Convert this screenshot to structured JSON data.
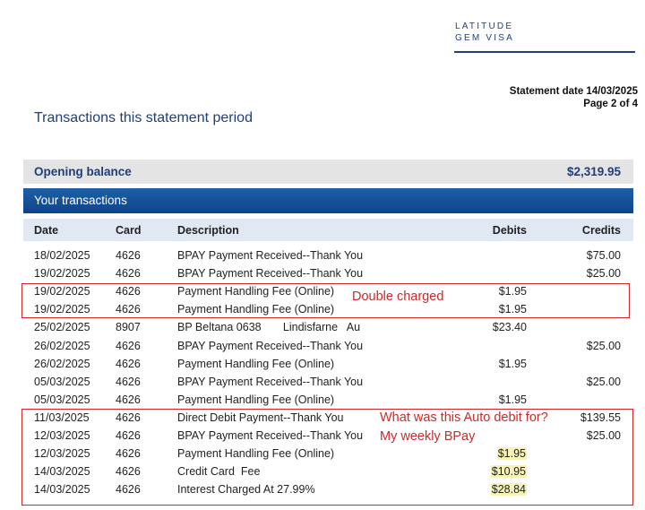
{
  "brand": {
    "line1": "LATITUDE",
    "line2": "GEM VISA"
  },
  "statement": {
    "date_label": "Statement date 14/03/2025",
    "page_label": "Page 2 of 4"
  },
  "page_title": "Transactions this statement period",
  "opening": {
    "label": "Opening balance",
    "value": "$2,319.95"
  },
  "your_transactions": "Your transactions",
  "columns": {
    "date": "Date",
    "card": "Card",
    "description": "Description",
    "debits": "Debits",
    "credits": "Credits"
  },
  "rows": [
    {
      "date": "18/02/2025",
      "card": "4626",
      "description": "BPAY Payment Received--Thank You",
      "debit": "",
      "credit": "$75.00"
    },
    {
      "date": "19/02/2025",
      "card": "4626",
      "description": "BPAY Payment Received--Thank You",
      "debit": "",
      "credit": "$25.00"
    },
    {
      "date": "19/02/2025",
      "card": "4626",
      "description": "Payment Handling Fee (Online)",
      "debit": "$1.95",
      "credit": ""
    },
    {
      "date": "19/02/2025",
      "card": "4626",
      "description": "Payment Handling Fee (Online)",
      "debit": "$1.95",
      "credit": ""
    },
    {
      "date": "25/02/2025",
      "card": "8907",
      "description": "BP Beltana 0638       Lindisfarne   Au",
      "debit": "$23.40",
      "credit": ""
    },
    {
      "date": "26/02/2025",
      "card": "4626",
      "description": "BPAY Payment Received--Thank You",
      "debit": "",
      "credit": "$25.00"
    },
    {
      "date": "26/02/2025",
      "card": "4626",
      "description": "Payment Handling Fee (Online)",
      "debit": "$1.95",
      "credit": ""
    },
    {
      "date": "05/03/2025",
      "card": "4626",
      "description": "BPAY Payment Received--Thank You",
      "debit": "",
      "credit": "$25.00"
    },
    {
      "date": "05/03/2025",
      "card": "4626",
      "description": "Payment Handling Fee (Online)",
      "debit": "$1.95",
      "credit": ""
    },
    {
      "date": "11/03/2025",
      "card": "4626",
      "description": "Direct Debit Payment--Thank You",
      "debit": "",
      "credit": "$139.55"
    },
    {
      "date": "12/03/2025",
      "card": "4626",
      "description": "BPAY Payment Received--Thank You",
      "debit": "",
      "credit": "$25.00"
    },
    {
      "date": "12/03/2025",
      "card": "4626",
      "description": "Payment Handling Fee (Online)",
      "debit": "$1.95",
      "credit": ""
    },
    {
      "date": "14/03/2025",
      "card": "4626",
      "description": "Credit Card  Fee",
      "debit": "$10.95",
      "credit": ""
    },
    {
      "date": "14/03/2025",
      "card": "4626",
      "description": "Interest Charged At 27.99%",
      "debit": "$28.84",
      "credit": ""
    }
  ],
  "annotations": {
    "double_charged": "Double charged",
    "auto_debit_question": "What was this Auto debit for?",
    "weekly_bpay": "My weekly BPay"
  },
  "colors": {
    "brand_navy": "#1f3f7a",
    "header_blue": "#0d4489",
    "annotation_red": "#cc2a2a",
    "highlight_yellow": "#f7f3b6"
  }
}
